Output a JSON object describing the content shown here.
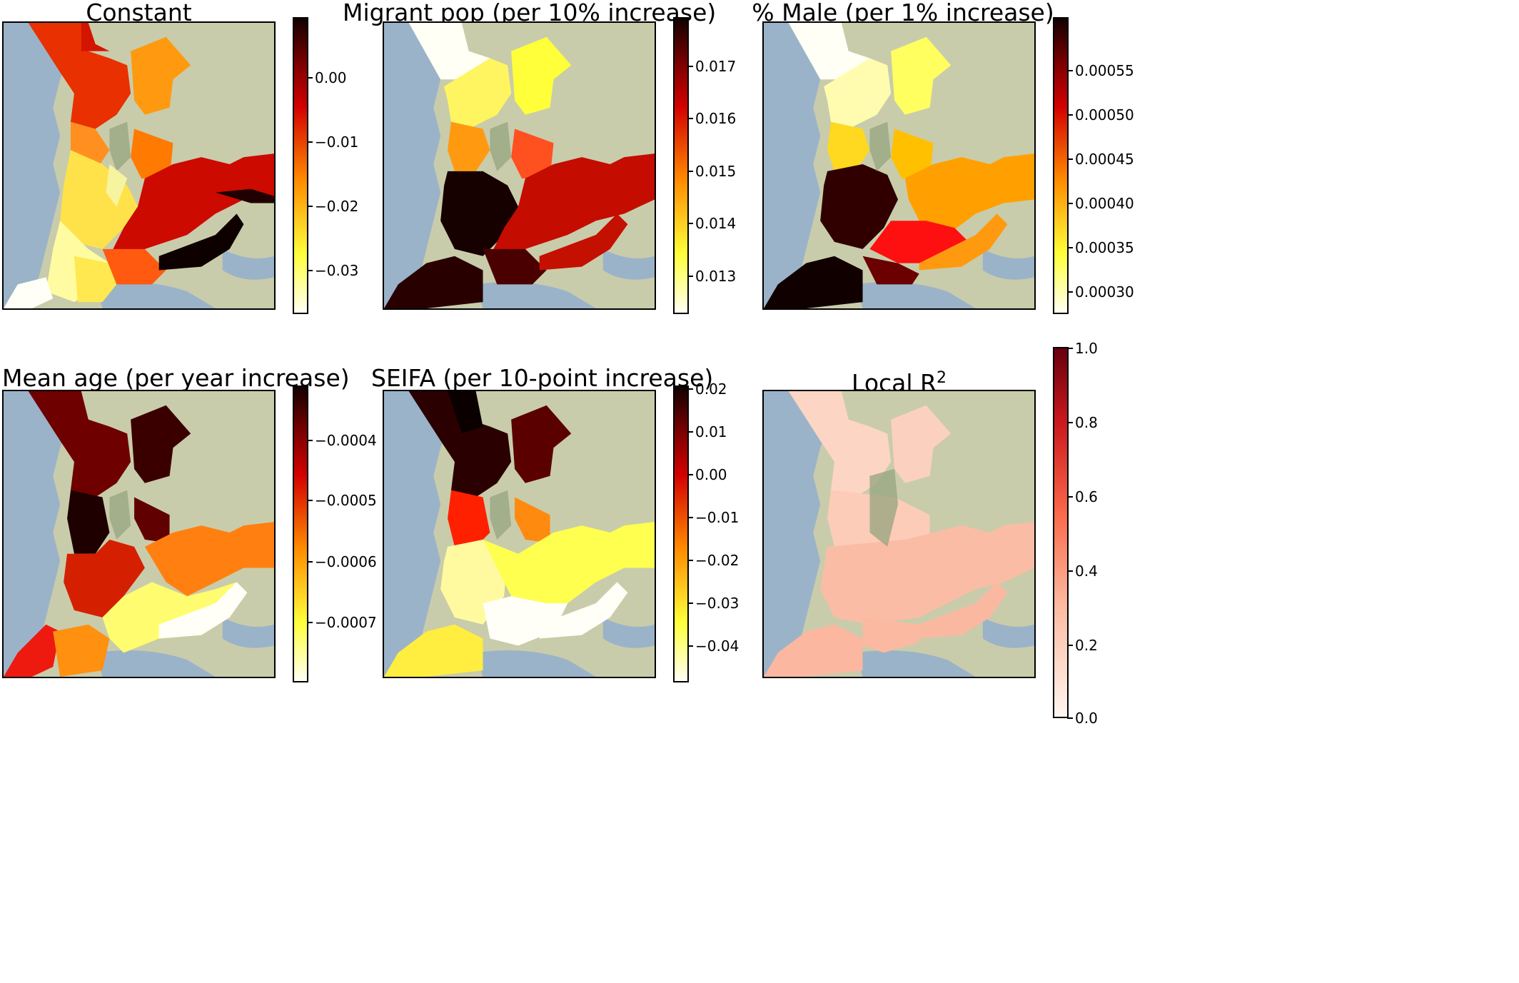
{
  "panels": [
    {
      "title": "Constant",
      "colormap": "hot_r",
      "colorbar_ticks": [
        "0.00",
        "−0.01",
        "−0.02",
        "−0.03"
      ]
    },
    {
      "title": "Migrant pop (per 10% increase)",
      "colormap": "hot_r",
      "colorbar_ticks": [
        "0.017",
        "0.016",
        "0.015",
        "0.014",
        "0.013"
      ]
    },
    {
      "title": "% Male (per 1% increase)",
      "colormap": "hot_r",
      "colorbar_ticks": [
        "0.00055",
        "0.00050",
        "0.00045",
        "0.00040",
        "0.00035",
        "0.00030"
      ]
    },
    {
      "title": "Mean age (per year increase)",
      "colormap": "hot_r",
      "colorbar_ticks": [
        "−0.0004",
        "−0.0005",
        "−0.0006",
        "−0.0007"
      ]
    },
    {
      "title": "SEIFA (per 10-point increase)",
      "colormap": "hot_r",
      "colorbar_ticks": [
        "0.02",
        "0.01",
        "0.00",
        "−0.01",
        "−0.02",
        "−0.03",
        "−0.04"
      ]
    },
    {
      "title": "Local R",
      "title_superscript": "2",
      "colormap": "Reds",
      "colorbar_ticks": [
        "1.0",
        "0.8",
        "0.6",
        "0.4",
        "0.2",
        "0.0"
      ]
    }
  ],
  "colors": {
    "sea": "#9bb3c9",
    "land": "#cdd0ab",
    "hot_dark": "#120000",
    "hot_red": "#d40000",
    "hot_orange": "#ff8c00",
    "hot_yellow": "#ffff3a",
    "hot_white": "#fffff5",
    "reds_dark": "#67000d",
    "reds_light": "#fff5f0"
  }
}
